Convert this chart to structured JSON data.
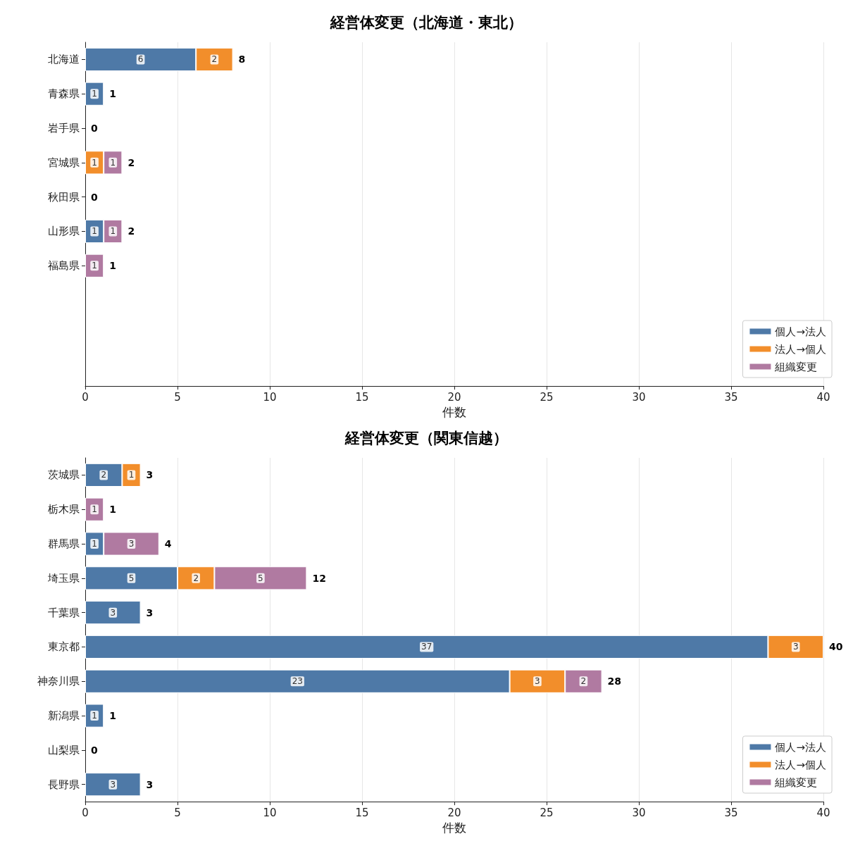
{
  "chart_data": [
    {
      "type": "bar",
      "orientation": "horizontal",
      "stacked": true,
      "title": "経営体変更（北海道・東北）",
      "xlabel": "件数",
      "categories": [
        "北海道",
        "青森県",
        "岩手県",
        "宮城県",
        "秋田県",
        "山形県",
        "福島県",
        null,
        null,
        null
      ],
      "series": [
        {
          "name": "個人→法人",
          "color": "#4e79a7",
          "values": [
            6,
            1,
            0,
            0,
            0,
            1,
            0,
            null,
            null,
            null
          ],
          "value_labels": [
            "6",
            "1",
            null,
            null,
            null,
            "1",
            null,
            null,
            null,
            null
          ]
        },
        {
          "name": "法人→個人",
          "color": "#f28e2b",
          "values": [
            2,
            0,
            0,
            1,
            0,
            0,
            0,
            null,
            null,
            null
          ],
          "value_labels": [
            "2",
            null,
            null,
            "1",
            null,
            null,
            null,
            null,
            null,
            null
          ]
        },
        {
          "name": "組織変更",
          "color": "#b07aa1",
          "values": [
            0,
            0,
            0,
            1,
            0,
            1,
            1,
            null,
            null,
            null
          ],
          "value_labels": [
            null,
            null,
            null,
            "1",
            null,
            "1",
            "1",
            null,
            null,
            null
          ]
        }
      ],
      "totals": [
        "8",
        "1",
        "0",
        "2",
        "0",
        "2",
        "1",
        null,
        null,
        null
      ],
      "xlim": [
        0,
        40
      ],
      "xticks": [
        0,
        5,
        10,
        15,
        20,
        25,
        30,
        35,
        40
      ],
      "grid": "x",
      "legend": "bottom right"
    },
    {
      "type": "bar",
      "orientation": "horizontal",
      "stacked": true,
      "title": "経営体変更（関東信越）",
      "xlabel": "件数",
      "categories": [
        "茨城県",
        "栃木県",
        "群馬県",
        "埼玉県",
        "千葉県",
        "東京都",
        "神奈川県",
        "新潟県",
        "山梨県",
        "長野県"
      ],
      "series": [
        {
          "name": "個人→法人",
          "color": "#4e79a7",
          "values": [
            2,
            0,
            1,
            5,
            3,
            37,
            23,
            1,
            0,
            3
          ],
          "value_labels": [
            "2",
            null,
            "1",
            "5",
            "3",
            "37",
            "23",
            "1",
            null,
            "3"
          ]
        },
        {
          "name": "法人→個人",
          "color": "#f28e2b",
          "values": [
            1,
            0,
            0,
            2,
            0,
            3,
            3,
            0,
            0,
            0
          ],
          "value_labels": [
            "1",
            null,
            null,
            "2",
            null,
            "3",
            "3",
            null,
            null,
            null
          ]
        },
        {
          "name": "組織変更",
          "color": "#b07aa1",
          "values": [
            0,
            1,
            3,
            5,
            0,
            0,
            2,
            0,
            0,
            0
          ],
          "value_labels": [
            null,
            "1",
            "3",
            "5",
            null,
            null,
            "2",
            null,
            null,
            null
          ]
        }
      ],
      "totals": [
        "3",
        "1",
        "4",
        "12",
        "3",
        "40",
        "28",
        "1",
        "0",
        "3"
      ],
      "xlim": [
        0,
        40
      ],
      "xticks": [
        0,
        5,
        10,
        15,
        20,
        25,
        30,
        35,
        40
      ],
      "grid": "x",
      "legend": "bottom right"
    }
  ]
}
